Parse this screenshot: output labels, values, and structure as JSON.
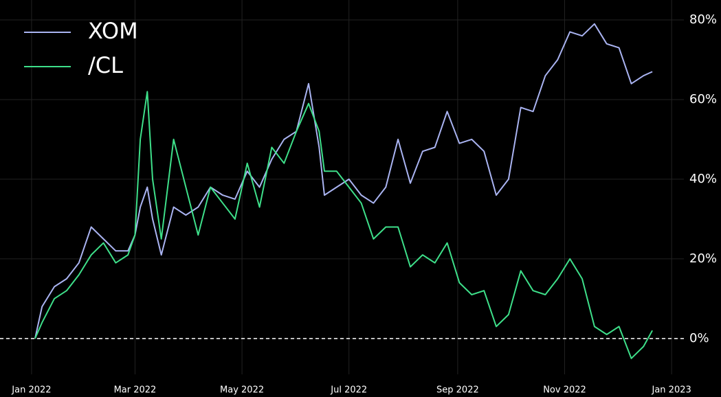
{
  "chart_data": {
    "type": "line",
    "x": [
      "2022-01-03",
      "2022-01-07",
      "2022-01-14",
      "2022-01-21",
      "2022-01-28",
      "2022-02-04",
      "2022-02-11",
      "2022-02-18",
      "2022-02-25",
      "2022-03-01",
      "2022-03-04",
      "2022-03-08",
      "2022-03-11",
      "2022-03-16",
      "2022-03-23",
      "2022-03-30",
      "2022-04-06",
      "2022-04-13",
      "2022-04-20",
      "2022-04-27",
      "2022-05-04",
      "2022-05-11",
      "2022-05-18",
      "2022-05-25",
      "2022-06-01",
      "2022-06-08",
      "2022-06-14",
      "2022-06-17",
      "2022-06-24",
      "2022-07-01",
      "2022-07-08",
      "2022-07-15",
      "2022-07-22",
      "2022-07-29",
      "2022-08-05",
      "2022-08-12",
      "2022-08-19",
      "2022-08-26",
      "2022-09-02",
      "2022-09-09",
      "2022-09-16",
      "2022-09-23",
      "2022-09-30",
      "2022-10-07",
      "2022-10-14",
      "2022-10-21",
      "2022-10-28",
      "2022-11-04",
      "2022-11-11",
      "2022-11-18",
      "2022-11-25",
      "2022-12-02",
      "2022-12-09",
      "2022-12-16",
      "2022-12-21"
    ],
    "series": [
      {
        "name": "XOM",
        "color": "#aab4f2",
        "values": [
          0,
          8,
          13,
          15,
          19,
          28,
          25,
          22,
          22,
          26,
          33,
          38,
          30,
          21,
          33,
          31,
          33,
          38,
          36,
          35,
          42,
          38,
          45,
          50,
          52,
          64,
          48,
          36,
          38,
          40,
          36,
          34,
          38,
          50,
          39,
          47,
          48,
          57,
          49,
          50,
          47,
          36,
          40,
          58,
          57,
          66,
          70,
          77,
          76,
          79,
          74,
          73,
          64,
          66,
          67
        ]
      },
      {
        "name": "/CL",
        "color": "#3ee08a",
        "values": [
          0,
          4,
          10,
          12,
          16,
          21,
          24,
          19,
          21,
          26,
          50,
          62,
          40,
          25,
          50,
          38,
          26,
          38,
          34,
          30,
          44,
          33,
          48,
          44,
          52,
          59,
          52,
          42,
          42,
          38,
          34,
          25,
          28,
          28,
          18,
          21,
          19,
          24,
          14,
          11,
          12,
          3,
          6,
          17,
          12,
          11,
          15,
          20,
          15,
          3,
          1,
          3,
          -5,
          -2,
          2
        ]
      }
    ],
    "xlim": [
      "2021-12-14",
      "2023-01-08"
    ],
    "xticks": [
      {
        "value": "2022-01-01",
        "label": "Jan 2022"
      },
      {
        "value": "2022-03-01",
        "label": "Mar 2022"
      },
      {
        "value": "2022-05-01",
        "label": "May 2022"
      },
      {
        "value": "2022-07-01",
        "label": "Jul 2022"
      },
      {
        "value": "2022-09-01",
        "label": "Sep 2022"
      },
      {
        "value": "2022-11-01",
        "label": "Nov 2022"
      },
      {
        "value": "2023-01-01",
        "label": "Jan 2023"
      }
    ],
    "ylim": [
      -9,
      85
    ],
    "yticks": [
      {
        "value": 0,
        "label": "0%"
      },
      {
        "value": 20,
        "label": "20%"
      },
      {
        "value": 40,
        "label": "40%"
      },
      {
        "value": 60,
        "label": "60%"
      },
      {
        "value": 80,
        "label": "80%"
      }
    ],
    "hline": 0,
    "grid": true,
    "legend": "upper left"
  }
}
